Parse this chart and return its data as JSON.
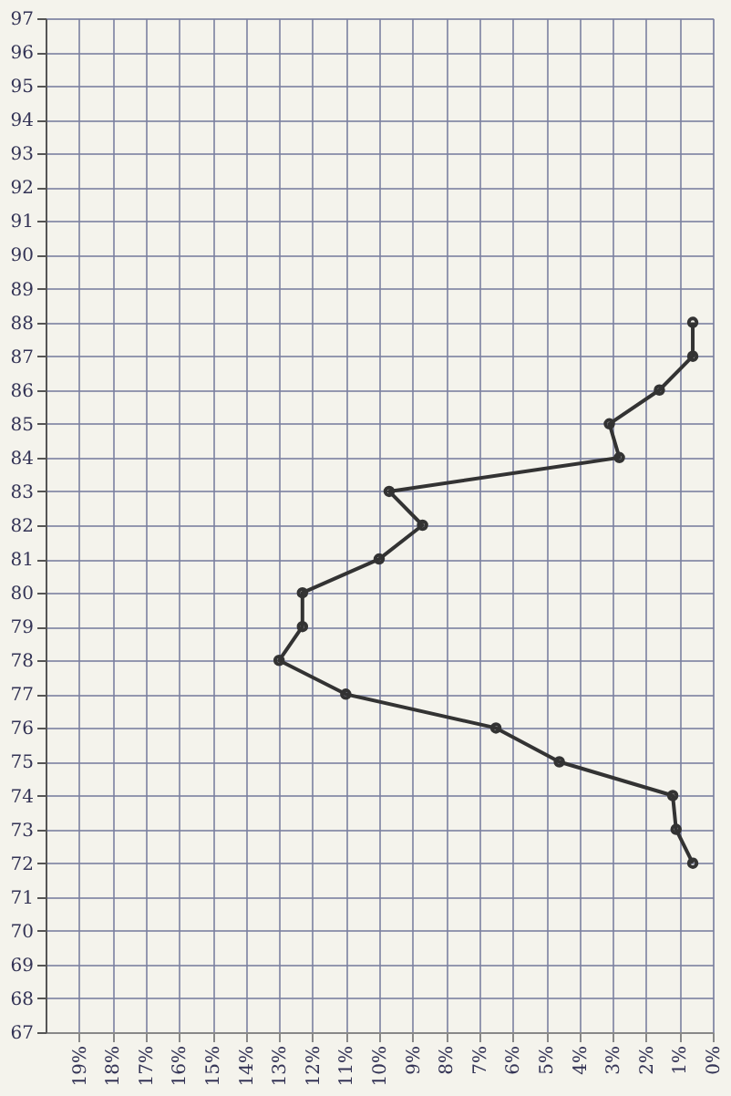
{
  "chart_data": {
    "type": "line",
    "orientation": "horizontal",
    "x": [
      72,
      73,
      74,
      75,
      76,
      77,
      78,
      79,
      80,
      81,
      82,
      83,
      84,
      85,
      86,
      87,
      88
    ],
    "values": [
      0.6,
      1.1,
      1.2,
      4.6,
      6.5,
      11.0,
      13.0,
      12.3,
      12.3,
      10.0,
      8.7,
      9.7,
      2.8,
      3.1,
      1.6,
      0.6,
      0.6
    ],
    "color": "#333333",
    "marker": "circle",
    "line_style": "solid",
    "xlim": [
      20,
      0
    ],
    "xticks": [
      {
        "value": 19,
        "label": "19%"
      },
      {
        "value": 18,
        "label": "18%"
      },
      {
        "value": 17,
        "label": "17%"
      },
      {
        "value": 16,
        "label": "16%"
      },
      {
        "value": 15,
        "label": "15%"
      },
      {
        "value": 14,
        "label": "14%"
      },
      {
        "value": 13,
        "label": "13%"
      },
      {
        "value": 12,
        "label": "12%"
      },
      {
        "value": 11,
        "label": "11%"
      },
      {
        "value": 10,
        "label": "10%"
      },
      {
        "value": 9,
        "label": "9%"
      },
      {
        "value": 8,
        "label": "8%"
      },
      {
        "value": 7,
        "label": "7%"
      },
      {
        "value": 6,
        "label": "6%"
      },
      {
        "value": 5,
        "label": "5%"
      },
      {
        "value": 4,
        "label": "4%"
      },
      {
        "value": 3,
        "label": "3%"
      },
      {
        "value": 2,
        "label": "2%"
      },
      {
        "value": 1,
        "label": "1%"
      },
      {
        "value": 0,
        "label": "0%"
      }
    ],
    "ylim": [
      67,
      97
    ],
    "yticks": [
      67,
      68,
      69,
      70,
      71,
      72,
      73,
      74,
      75,
      76,
      77,
      78,
      79,
      80,
      81,
      82,
      83,
      84,
      85,
      86,
      87,
      88,
      89,
      90,
      91,
      92,
      93,
      94,
      95,
      96,
      97
    ],
    "grid": true
  }
}
